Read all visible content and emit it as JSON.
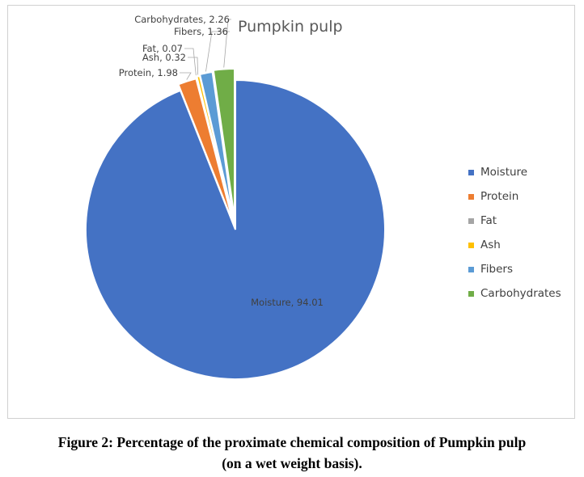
{
  "chart_data": {
    "type": "pie",
    "title": "Pumpkin pulp",
    "slices": [
      {
        "label": "Moisture",
        "value": 94.01,
        "color": "#4472c4"
      },
      {
        "label": "Protein",
        "value": 1.98,
        "color": "#ed7d31"
      },
      {
        "label": "Fat",
        "value": 0.07,
        "color": "#a5a5a5"
      },
      {
        "label": "Ash",
        "value": 0.32,
        "color": "#ffc000"
      },
      {
        "label": "Fibers",
        "value": 1.36,
        "color": "#5b9bd5"
      },
      {
        "label": "Carbohydrates",
        "value": 2.26,
        "color": "#70ad47"
      }
    ],
    "data_labels": [
      "Moisture, 94.01",
      "Protein, 1.98",
      "Fat, 0.07",
      "Ash, 0.32",
      "Fibers, 1.36",
      "Carbohydrates, 2.26"
    ],
    "exploded": true,
    "legend_position": "right"
  },
  "caption": {
    "line1": "Figure 2: Percentage of the proximate chemical composition of Pumpkin pulp",
    "line2": "(on a wet weight basis)."
  }
}
